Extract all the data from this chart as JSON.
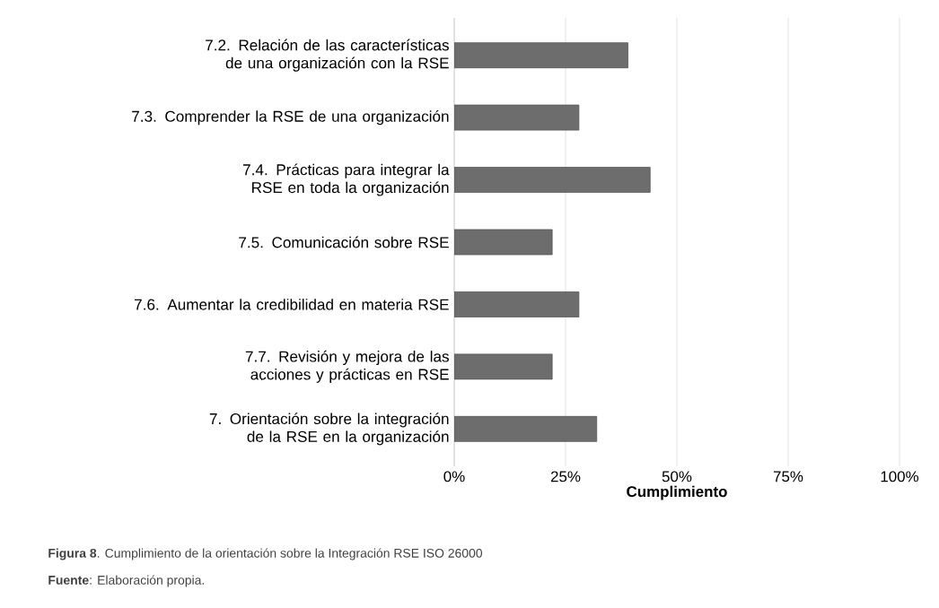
{
  "chart_data": {
    "type": "bar",
    "orientation": "horizontal",
    "xlabel": "Cumplimiento",
    "categories": [
      "7.2. Relación de las características de una organización con la RSE",
      "7.3. Comprender la RSE de una organización",
      "7.4. Prácticas para integrar la RSE en toda la organización",
      "7.5. Comunicación sobre RSE",
      "7.6. Aumentar la credibilidad en materia RSE",
      "7.7. Revisión y mejora de las acciones y prácticas en RSE",
      "7. Orientación sobre la integración de la RSE en la organización"
    ],
    "values": [
      39,
      28,
      44,
      22,
      28,
      22,
      32
    ],
    "color": "#6d6d6d",
    "xlim": [
      0,
      100
    ],
    "xticks": [
      {
        "value": 0,
        "label": "0%"
      },
      {
        "value": 25,
        "label": "25%"
      },
      {
        "value": 50,
        "label": "50%"
      },
      {
        "value": 75,
        "label": "75%"
      },
      {
        "value": 100,
        "label": "100%"
      }
    ],
    "grid": "x",
    "annotations": [
      "**Figura 8**. Cumplimiento de la orientación sobre la Integración RSE ISO 26000",
      "**Fuente**: Elaboración propia."
    ]
  }
}
